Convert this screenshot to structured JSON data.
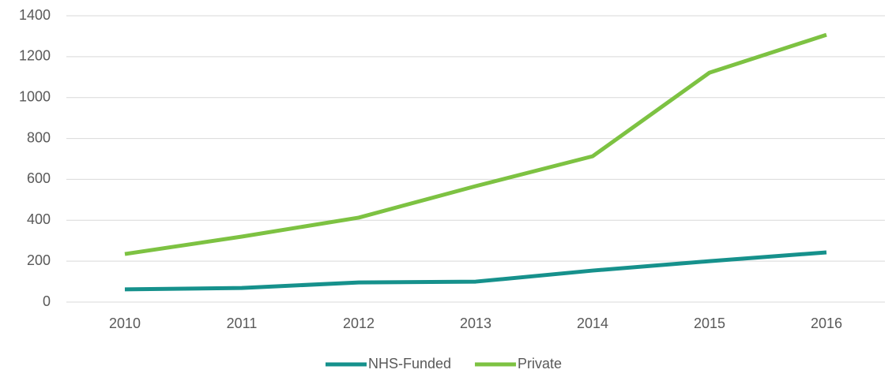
{
  "chart_data": {
    "type": "line",
    "categories": [
      "2010",
      "2011",
      "2012",
      "2013",
      "2014",
      "2015",
      "2016"
    ],
    "series": [
      {
        "name": "NHS-Funded",
        "color": "#16918c",
        "values": [
          62,
          69,
          96,
          100,
          154,
          200,
          243
        ]
      },
      {
        "name": "Private",
        "color": "#7dc242",
        "values": [
          235,
          320,
          413,
          567,
          713,
          1122,
          1307
        ]
      }
    ],
    "ylim": [
      0,
      1400
    ],
    "yticks": [
      0,
      200,
      400,
      600,
      800,
      1000,
      1200,
      1400
    ],
    "grid": true,
    "legend": "bottom"
  }
}
